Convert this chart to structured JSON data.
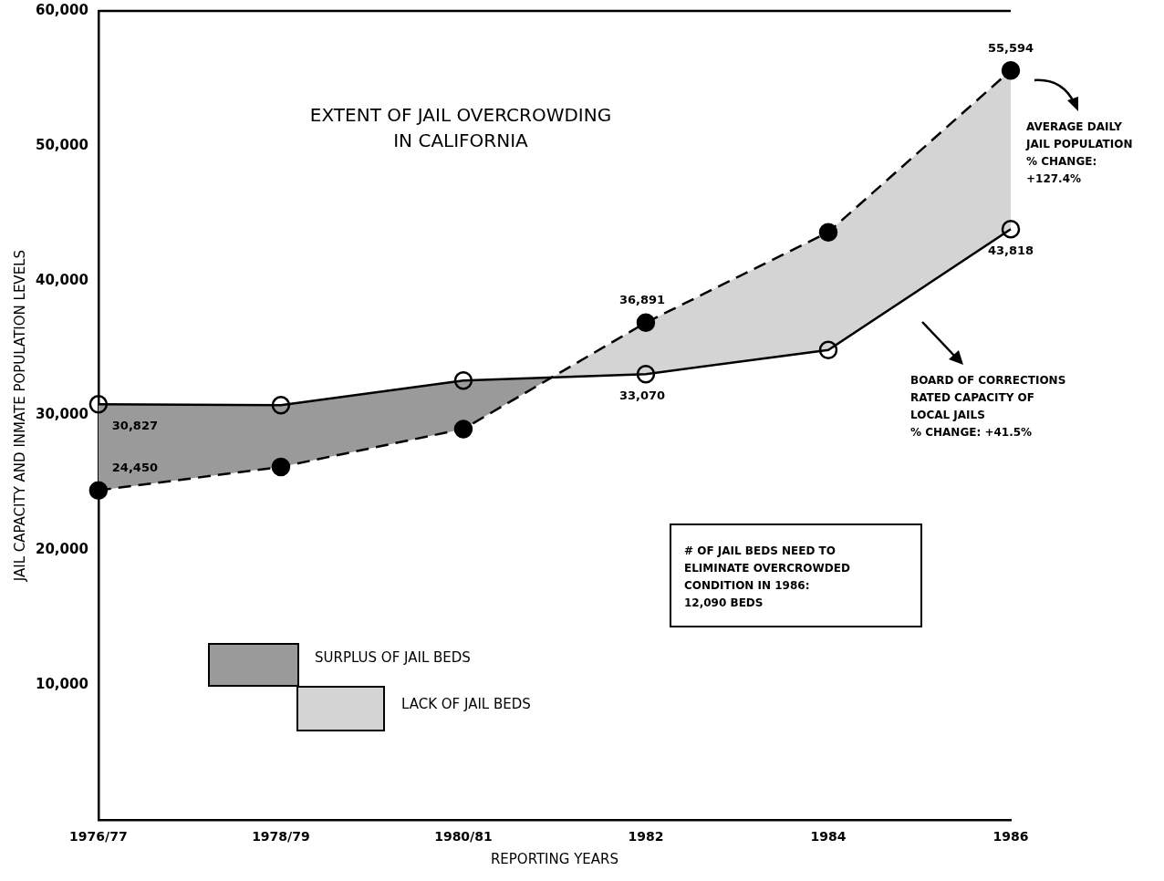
{
  "chart_data": {
    "type": "line",
    "title": "EXTENT OF JAIL OVERCROWDING\nIN CALIFORNIA",
    "xlabel": "REPORTING YEARS",
    "ylabel": "JAIL CAPACITY AND INMATE POPULATION LEVELS",
    "categories": [
      "1976/77",
      "1978/79",
      "1980/81",
      "1982",
      "1984",
      "1986"
    ],
    "series": [
      {
        "color": "#000000",
        "values": [
          24450,
          26190,
          29000,
          36891,
          43590,
          55594
        ],
        "value_labels": [
          "24,450",
          null,
          null,
          "36,891",
          null,
          "55,594"
        ],
        "line_style": "dashed"
      },
      {
        "color": "#000000",
        "values": [
          30827,
          30760,
          32600,
          33070,
          34860,
          43818
        ],
        "value_labels": [
          "30,827",
          null,
          null,
          "33,070",
          null,
          "43,818"
        ],
        "line_style": "solid"
      }
    ],
    "ylim": [
      0,
      60000
    ],
    "yticks": [
      {
        "value": 10000,
        "label": "10,000"
      },
      {
        "value": 20000,
        "label": "20,000"
      },
      {
        "value": 30000,
        "label": "30,000"
      },
      {
        "value": 40000,
        "label": "40,000"
      },
      {
        "value": 50000,
        "label": "50,000"
      },
      {
        "value": 60000,
        "label": "60,000"
      }
    ],
    "grid": false,
    "legend": false,
    "marker": "circle",
    "annotations": [
      "AVERAGE DAILY\nJAIL POPULATION\n% CHANGE:\n+127.4%",
      "BOARD OF CORRECTIONS\nRATED CAPACITY OF\nLOCAL JAILS\n% CHANGE: +41.5%",
      "# OF JAIL BEDS NEED TO\nELIMINATE OVERCROWDED\nCONDITION IN 1986:\n12,090 BEDS",
      "SURPLUS OF JAIL BEDS",
      "LACK OF JAIL BEDS"
    ]
  }
}
